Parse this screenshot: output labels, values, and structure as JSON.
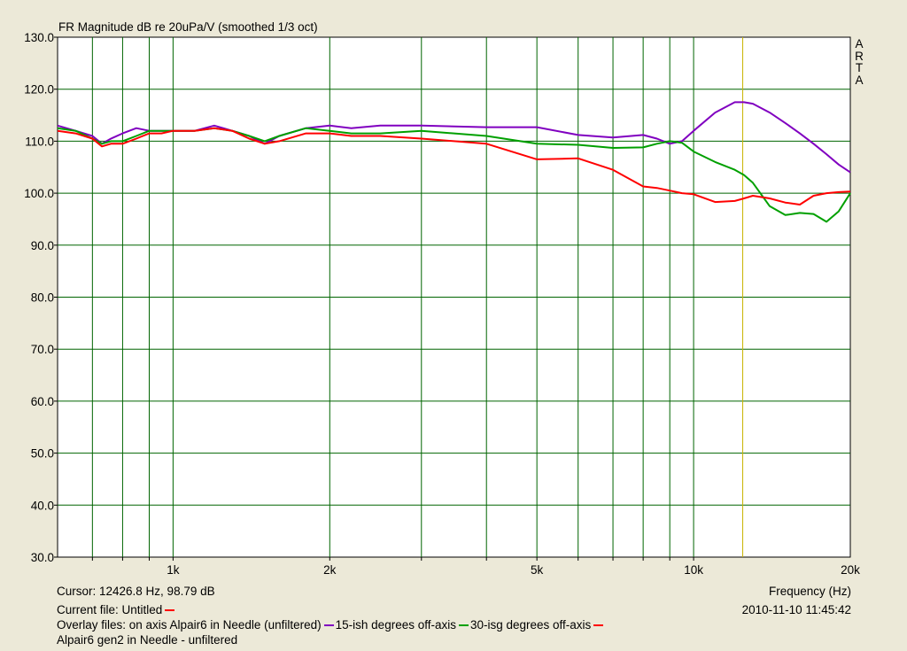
{
  "chart_data": {
    "type": "line",
    "title": "FR Magnitude dB re 20uPa/V (smoothed 1/3 oct)",
    "xlabel": "Frequency (Hz)",
    "ylabel": "",
    "x_scale": "log",
    "xlim": [
      600,
      20000
    ],
    "ylim": [
      30,
      130
    ],
    "y_ticks": [
      "30.0",
      "40.0",
      "50.0",
      "60.0",
      "70.0",
      "80.0",
      "90.0",
      "100.0",
      "110.0",
      "120.0",
      "130.0"
    ],
    "x_tick_labels": [
      {
        "value": 1000,
        "label": "1k"
      },
      {
        "value": 2000,
        "label": "2k"
      },
      {
        "value": 5000,
        "label": "5k"
      },
      {
        "value": 10000,
        "label": "10k"
      },
      {
        "value": 20000,
        "label": "20k"
      }
    ],
    "x_gridlines": [
      700,
      800,
      900,
      1000,
      2000,
      3000,
      4000,
      5000,
      6000,
      7000,
      8000,
      9000,
      10000
    ],
    "cursor_hz": 12426.8,
    "grid": true,
    "colors": {
      "background": "#FFFFFF",
      "grid": "#006400",
      "cursor": "#C8B400",
      "red": "#FF0000",
      "purple": "#8000C0",
      "green": "#00A000"
    },
    "series": [
      {
        "name": "15-ish degrees off-axis",
        "color": "#8000C0",
        "x": [
          600,
          650,
          700,
          730,
          760,
          800,
          850,
          900,
          950,
          1000,
          1100,
          1200,
          1300,
          1400,
          1500,
          1600,
          1800,
          2000,
          2200,
          2500,
          3000,
          4000,
          5000,
          6000,
          7000,
          8000,
          8500,
          9000,
          9500,
          10000,
          11000,
          12000,
          12500,
          13000,
          14000,
          15000,
          16000,
          17000,
          18000,
          19000,
          20000
        ],
        "y": [
          113,
          112,
          111,
          109.5,
          110.5,
          111.5,
          112.5,
          112,
          112,
          112,
          112,
          113,
          112,
          111,
          109.5,
          111,
          112.5,
          113,
          112.5,
          113,
          113,
          112.7,
          112.7,
          111.2,
          110.7,
          111.2,
          110.5,
          109.5,
          110,
          112,
          115.5,
          117.5,
          117.5,
          117.2,
          115.5,
          113.5,
          111.5,
          109.5,
          107.5,
          105.5,
          104
        ]
      },
      {
        "name": "30-isg degrees off-axis",
        "color": "#00A000",
        "x": [
          600,
          650,
          700,
          730,
          760,
          800,
          850,
          900,
          950,
          1000,
          1100,
          1200,
          1300,
          1400,
          1500,
          1600,
          1800,
          2000,
          2200,
          2500,
          3000,
          4000,
          5000,
          6000,
          7000,
          8000,
          8500,
          9000,
          9500,
          10000,
          11000,
          12000,
          12500,
          13000,
          14000,
          15000,
          16000,
          17000,
          18000,
          19000,
          20000
        ],
        "y": [
          112.5,
          112,
          110.5,
          109.5,
          110,
          110,
          111,
          112,
          112,
          112,
          112,
          112.5,
          112,
          111,
          110,
          111,
          112.5,
          112,
          111.5,
          111.5,
          112,
          111,
          109.5,
          109.3,
          108.7,
          108.8,
          109.5,
          110,
          109.7,
          108,
          106,
          104.5,
          103.5,
          102,
          97.5,
          95.8,
          96.2,
          96,
          94.5,
          96.5,
          100
        ]
      },
      {
        "name": "Alpair6 gen2 in Needle - unfiltered",
        "color": "#FF0000",
        "x": [
          600,
          650,
          700,
          730,
          760,
          800,
          850,
          900,
          950,
          1000,
          1100,
          1200,
          1300,
          1400,
          1500,
          1600,
          1800,
          2000,
          2200,
          2500,
          3000,
          4000,
          5000,
          6000,
          7000,
          8000,
          8500,
          9000,
          9500,
          10000,
          11000,
          12000,
          12500,
          13000,
          14000,
          15000,
          16000,
          17000,
          18000,
          19000,
          20000
        ],
        "y": [
          112,
          111.5,
          110.5,
          109,
          109.5,
          109.5,
          110.5,
          111.5,
          111.5,
          112,
          112,
          112.5,
          112,
          110.5,
          109.5,
          110,
          111.5,
          111.5,
          111,
          111,
          110.5,
          109.5,
          106.5,
          106.7,
          104.5,
          101.3,
          101,
          100.5,
          100,
          99.8,
          98.3,
          98.5,
          99,
          99.5,
          99,
          98.2,
          97.8,
          99.5,
          100,
          100.2,
          100.3
        ]
      }
    ]
  },
  "footer": {
    "cursor_readout": "Cursor: 12426.8 Hz, 98.79 dB",
    "frequency_label": "Frequency (Hz)",
    "current_file": "Current file: Untitled",
    "timestamp": "2010-11-10  11:45:42",
    "overlay_prefix": "Overlay files: on axis Alpair6 in Needle (unfiltered)",
    "overlay_item2": "15-ish degrees off-axis",
    "overlay_item3": "30-isg degrees off-axis",
    "overlay_line2": "Alpair6 gen2 in Needle - unfiltered"
  },
  "logo": [
    "A",
    "R",
    "T",
    "A"
  ]
}
